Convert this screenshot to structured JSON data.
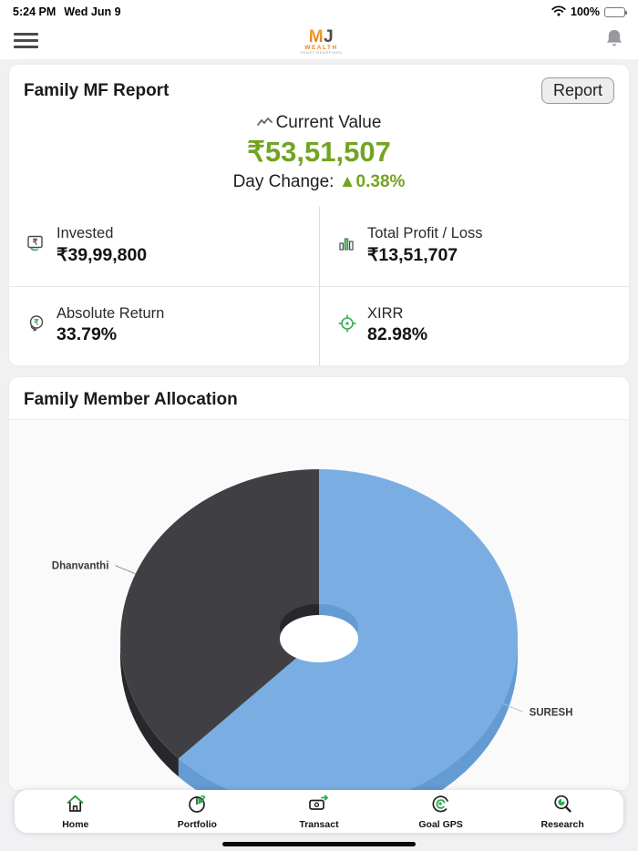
{
  "status_bar": {
    "time": "5:24 PM",
    "date": "Wed Jun 9",
    "battery": "100%"
  },
  "header": {
    "logo_m": "M",
    "logo_j": "J",
    "logo_wealth": "WEALTH",
    "logo_tagline": "TRUST REDEFINED"
  },
  "colors": {
    "accent_green": "#73a420",
    "nav_green": "#1f9e3e"
  },
  "report_card": {
    "title": "Family MF Report",
    "report_button": "Report",
    "current_value_label": "Current Value",
    "current_value": "₹53,51,507",
    "day_change_label": "Day Change: ",
    "day_change_value": "▲0.38%",
    "stats": [
      {
        "label": "Invested",
        "value": "₹39,99,800",
        "icon": "invested-icon"
      },
      {
        "label": "Total Profit / Loss",
        "value": "₹13,51,707",
        "icon": "profit-loss-icon"
      },
      {
        "label": "Absolute Return",
        "value": "33.79%",
        "icon": "absolute-return-icon"
      },
      {
        "label": "XIRR",
        "value": "82.98%",
        "icon": "xirr-icon"
      }
    ]
  },
  "allocation_card": {
    "title": "Family Member Allocation"
  },
  "chart_data": {
    "type": "pie",
    "title": "Family Member Allocation",
    "labels": [
      "SURESH",
      "Dhanvanthi"
    ],
    "values": [
      62.5,
      37.5
    ],
    "colors": [
      "#7aaee3",
      "#403f44"
    ],
    "side_colors": [
      "#649bd2",
      "#28272c"
    ],
    "label_line_colors": [
      "#a9c9ea",
      "#8c8c8c"
    ],
    "donut": true,
    "effect": "3d",
    "start_angle_deg": 0,
    "legend_position": "none"
  },
  "bottom_nav": {
    "items": [
      {
        "label": "Home",
        "icon": "home-icon"
      },
      {
        "label": "Portfolio",
        "icon": "portfolio-icon"
      },
      {
        "label": "Transact",
        "icon": "transact-icon"
      },
      {
        "label": "Goal GPS",
        "icon": "goal-gps-icon"
      },
      {
        "label": "Research",
        "icon": "research-icon"
      }
    ]
  }
}
